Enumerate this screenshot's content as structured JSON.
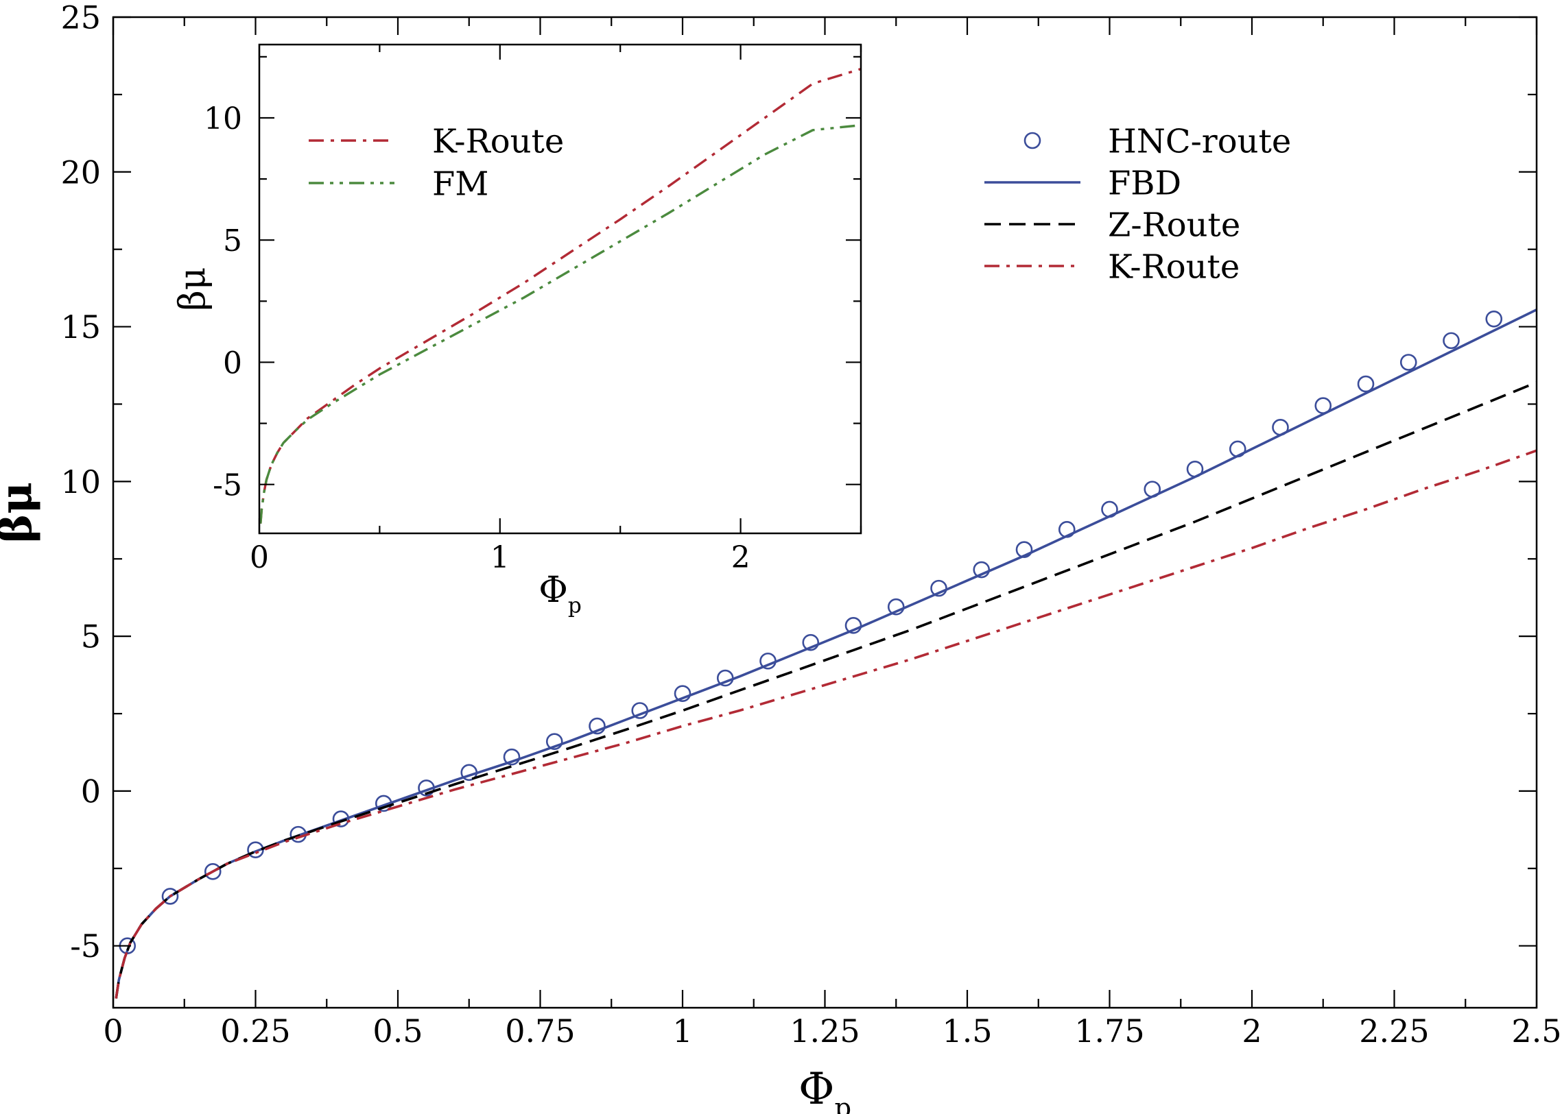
{
  "chart_data": [
    {
      "type": "line",
      "role": "main",
      "xlabel": "Φ",
      "xlabel_sub": "p",
      "ylabel": "βμ",
      "xlim": [
        0,
        2.5
      ],
      "ylim": [
        -7,
        25
      ],
      "xticks": [
        0,
        0.25,
        0.5,
        0.75,
        1,
        1.25,
        1.5,
        1.75,
        2,
        2.25,
        2.5
      ],
      "xtick_labels": [
        "0",
        "0.25",
        "0.5",
        "0.75",
        "1",
        "1.25",
        "1.5",
        "1.75",
        "2",
        "2.25",
        "2.5"
      ],
      "yticks": [
        -5,
        0,
        5,
        10,
        15,
        20,
        25
      ],
      "ytick_labels": [
        "-5",
        "0",
        "5",
        "10",
        "15",
        "20",
        "25"
      ],
      "legend_position": "top-right",
      "series": [
        {
          "name": "HNC-route",
          "style": "circles",
          "color": "#3b4d9a",
          "x": [
            0.025,
            0.1,
            0.175,
            0.25,
            0.325,
            0.4,
            0.475,
            0.55,
            0.625,
            0.7,
            0.775,
            0.85,
            0.925,
            1.0,
            1.075,
            1.15,
            1.225,
            1.3,
            1.375,
            1.45,
            1.525,
            1.6,
            1.675,
            1.75,
            1.825,
            1.9,
            1.975,
            2.05,
            2.125,
            2.2,
            2.275,
            2.35,
            2.425
          ],
          "y": [
            -5.0,
            -3.4,
            -2.6,
            -1.9,
            -1.4,
            -0.9,
            -0.4,
            0.1,
            0.6,
            1.1,
            1.6,
            2.1,
            2.6,
            3.15,
            3.65,
            4.2,
            4.8,
            5.35,
            5.95,
            6.55,
            7.15,
            7.8,
            8.45,
            9.1,
            9.75,
            10.4,
            11.05,
            11.75,
            12.45,
            13.15,
            13.85,
            14.55,
            15.25
          ]
        },
        {
          "name": "FBD",
          "style": "solid",
          "color": "#3b4d9a",
          "x": [
            0.005,
            0.01,
            0.02,
            0.03,
            0.05,
            0.075,
            0.1,
            0.15,
            0.2,
            0.25,
            0.3,
            0.4,
            0.5,
            0.6,
            0.7,
            0.8,
            0.9,
            1.0,
            1.1,
            1.2,
            1.3,
            1.4,
            1.5,
            1.6,
            1.7,
            1.8,
            1.9,
            2.0,
            2.1,
            2.2,
            2.3,
            2.4,
            2.5
          ],
          "y": [
            -6.7,
            -6.1,
            -5.4,
            -4.9,
            -4.3,
            -3.8,
            -3.4,
            -2.85,
            -2.35,
            -1.95,
            -1.6,
            -0.95,
            -0.3,
            0.35,
            0.95,
            1.6,
            2.3,
            3.0,
            3.7,
            4.45,
            5.2,
            6.0,
            6.8,
            7.6,
            8.45,
            9.3,
            10.15,
            11.05,
            11.95,
            12.85,
            13.75,
            14.65,
            15.55
          ]
        },
        {
          "name": "Z-Route",
          "style": "dashed",
          "color": "#000000",
          "x": [
            0.005,
            0.01,
            0.02,
            0.03,
            0.05,
            0.075,
            0.1,
            0.15,
            0.2,
            0.25,
            0.3,
            0.4,
            0.5,
            0.6,
            0.7,
            0.8,
            0.9,
            1.0,
            1.1,
            1.2,
            1.3,
            1.4,
            1.5,
            1.6,
            1.7,
            1.8,
            1.9,
            2.0,
            2.1,
            2.2,
            2.3,
            2.4,
            2.5
          ],
          "y": [
            -6.7,
            -6.1,
            -5.4,
            -4.9,
            -4.3,
            -3.8,
            -3.4,
            -2.85,
            -2.35,
            -1.95,
            -1.6,
            -0.98,
            -0.38,
            0.22,
            0.8,
            1.38,
            1.98,
            2.6,
            3.25,
            3.9,
            4.55,
            5.2,
            5.9,
            6.6,
            7.3,
            8.0,
            8.7,
            9.45,
            10.2,
            10.95,
            11.7,
            12.45,
            13.2
          ]
        },
        {
          "name": "K-Route",
          "style": "dash-dot",
          "color": "#b22a35",
          "x": [
            0.005,
            0.01,
            0.02,
            0.03,
            0.05,
            0.075,
            0.1,
            0.15,
            0.2,
            0.25,
            0.3,
            0.4,
            0.5,
            0.6,
            0.7,
            0.8,
            0.9,
            1.0,
            1.1,
            1.2,
            1.3,
            1.4,
            1.5,
            1.6,
            1.7,
            1.8,
            1.9,
            2.0,
            2.1,
            2.2,
            2.3,
            2.4,
            2.5
          ],
          "y": [
            -6.7,
            -6.1,
            -5.4,
            -4.9,
            -4.3,
            -3.8,
            -3.4,
            -2.85,
            -2.35,
            -2.0,
            -1.65,
            -1.05,
            -0.5,
            0.05,
            0.55,
            1.05,
            1.55,
            2.1,
            2.6,
            3.15,
            3.7,
            4.25,
            4.85,
            5.45,
            6.05,
            6.65,
            7.25,
            7.85,
            8.5,
            9.1,
            9.75,
            10.35,
            11.0
          ]
        }
      ]
    },
    {
      "type": "line",
      "role": "inset",
      "xlabel": "Φ",
      "xlabel_sub": "p",
      "ylabel": "βμ",
      "xlim": [
        0,
        2.5
      ],
      "ylim": [
        -7,
        13
      ],
      "xticks": [
        0,
        1,
        2
      ],
      "xtick_labels": [
        "0",
        "1",
        "2"
      ],
      "yticks": [
        -5,
        0,
        5,
        10
      ],
      "ytick_labels": [
        "-5",
        "0",
        "5",
        "10"
      ],
      "legend_position": "top-left",
      "series": [
        {
          "name": "K-Route",
          "style": "dash-dot",
          "color": "#b22a35",
          "x": [
            0.005,
            0.01,
            0.02,
            0.03,
            0.05,
            0.075,
            0.1,
            0.15,
            0.2,
            0.3,
            0.4,
            0.5,
            0.7,
            0.9,
            1.1,
            1.3,
            1.5,
            1.7,
            1.9,
            2.1,
            2.3,
            2.5
          ],
          "y": [
            -6.6,
            -6.0,
            -5.3,
            -4.8,
            -4.2,
            -3.7,
            -3.3,
            -2.8,
            -2.3,
            -1.6,
            -0.9,
            -0.25,
            0.9,
            2.05,
            3.25,
            4.55,
            5.85,
            7.2,
            8.6,
            10.0,
            11.4,
            12.0
          ]
        },
        {
          "name": "FM",
          "style": "dash-dot-dot",
          "color": "#4b8a3e",
          "x": [
            0.005,
            0.01,
            0.02,
            0.03,
            0.05,
            0.075,
            0.1,
            0.15,
            0.2,
            0.3,
            0.4,
            0.5,
            0.7,
            0.9,
            1.1,
            1.3,
            1.5,
            1.7,
            1.9,
            2.1,
            2.3,
            2.5
          ],
          "y": [
            -6.6,
            -6.0,
            -5.3,
            -4.8,
            -4.2,
            -3.7,
            -3.3,
            -2.8,
            -2.35,
            -1.7,
            -1.1,
            -0.5,
            0.55,
            1.6,
            2.65,
            3.8,
            4.95,
            6.1,
            7.3,
            8.5,
            9.5,
            9.7
          ]
        }
      ]
    }
  ]
}
